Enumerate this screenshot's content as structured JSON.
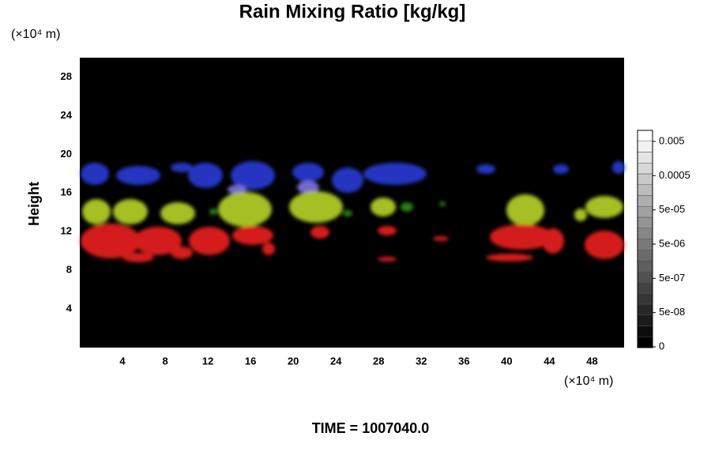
{
  "chart_data": {
    "type": "field",
    "title": "Rain Mixing Ratio [kg/kg]",
    "ylabel": "Height",
    "x_unit": "(×10⁴ m)",
    "y_unit": "(×10⁴ m)",
    "footer": "TIME = 1007040.0",
    "xlim": [
      0,
      51
    ],
    "ylim": [
      0,
      30
    ],
    "xticks": [
      4,
      8,
      12,
      16,
      20,
      24,
      28,
      32,
      36,
      40,
      44,
      48
    ],
    "yticks": [
      4,
      8,
      12,
      16,
      20,
      24,
      28
    ],
    "colorbar_ticks": [
      {
        "value": 0,
        "label": "0"
      },
      {
        "value": 5e-08,
        "label": "5e-08"
      },
      {
        "value": 5e-07,
        "label": "5e-07"
      },
      {
        "value": 5e-06,
        "label": "5e-06"
      },
      {
        "value": 5e-05,
        "label": "5e-05"
      },
      {
        "value": 0.0005,
        "label": "0.0005"
      },
      {
        "value": 0.005,
        "label": "0.005"
      }
    ]
  }
}
